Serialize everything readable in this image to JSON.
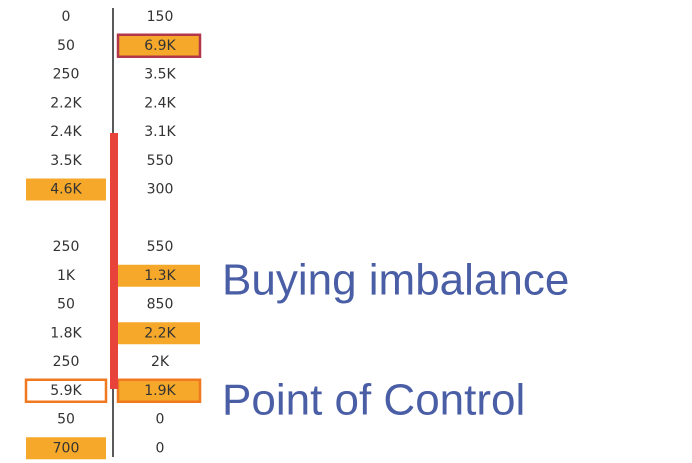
{
  "footprint": {
    "rows": [
      {
        "bid": "0",
        "ask": "150"
      },
      {
        "bid": "50",
        "ask": "6.9K",
        "ask_highlight": true,
        "ask_outline": true
      },
      {
        "bid": "250",
        "ask": "3.5K"
      },
      {
        "bid": "2.2K",
        "ask": "2.4K"
      },
      {
        "bid": "2.4K",
        "ask": "3.1K"
      },
      {
        "bid": "3.5K",
        "ask": "550"
      },
      {
        "bid": "4.6K",
        "ask": "300",
        "bid_highlight": true
      },
      null,
      {
        "bid": "250",
        "ask": "550"
      },
      {
        "bid": "1K",
        "ask": "1.3K",
        "ask_highlight": true
      },
      {
        "bid": "50",
        "ask": "850"
      },
      {
        "bid": "1.8K",
        "ask": "2.2K",
        "ask_highlight": true
      },
      {
        "bid": "250",
        "ask": "2K"
      },
      {
        "bid": "5.9K",
        "ask": "1.9K",
        "ask_highlight": true,
        "poc": true
      },
      {
        "bid": "50",
        "ask": "0"
      },
      {
        "bid": "700",
        "ask": "0",
        "bid_highlight": true
      }
    ]
  },
  "annotations": {
    "buying_imbalance": "Buying imbalance",
    "point_of_control": "Point of Control"
  }
}
